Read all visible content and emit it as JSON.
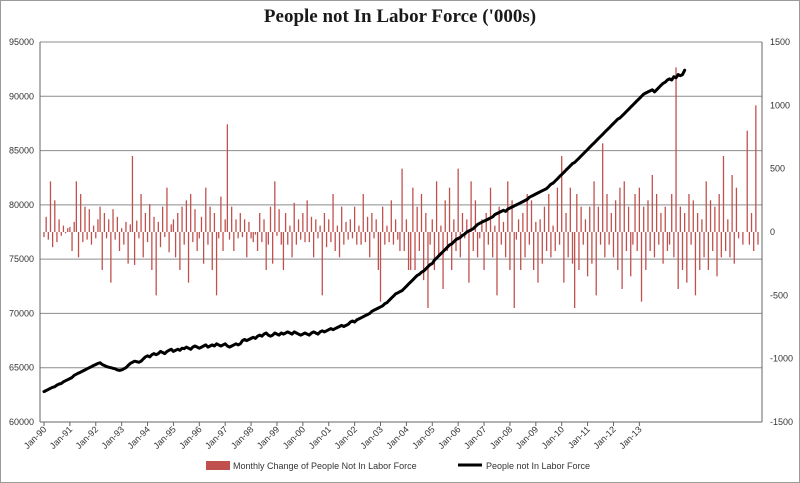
{
  "chart_data": {
    "type": "bar+line",
    "title": "People not In Labor Force ('000s)",
    "grid": true,
    "legend_position": "bottom",
    "left_axis": {
      "ylim": [
        60000,
        95000
      ],
      "ticks": [
        60000,
        65000,
        70000,
        75000,
        80000,
        85000,
        90000,
        95000
      ],
      "tick_labels": [
        "60000",
        "65000",
        "70000",
        "75000",
        "80000",
        "85000",
        "90000",
        "95000"
      ]
    },
    "right_axis": {
      "ylim": [
        -1500,
        1500
      ],
      "ticks": [
        -1500,
        -1000,
        -500,
        0,
        500,
        1000,
        1500
      ],
      "tick_labels": [
        "-1500",
        "-1000",
        "-500",
        "0",
        "500",
        "1000",
        "1500"
      ]
    },
    "x_axis": {
      "start": "1990-01",
      "end": "2013-09",
      "tick_labels": [
        "Jan-90",
        "Jan-91",
        "Jan-92",
        "Jan-93",
        "Jan-94",
        "Jan-95",
        "Jan-96",
        "Jan-97",
        "Jan-98",
        "Jan-99",
        "Jan-00",
        "Jan-01",
        "Jan-02",
        "Jan-03",
        "Jan-04",
        "Jan-05",
        "Jan-06",
        "Jan-07",
        "Jan-08",
        "Jan-09",
        "Jan-10",
        "Jan-11",
        "Jan-12",
        "Jan-13"
      ]
    },
    "series": [
      {
        "name": "Monthly Change of People Not In Labor Force",
        "type": "bar",
        "axis": "right",
        "color": "#c0504d",
        "values": [
          -40,
          120,
          -60,
          400,
          -120,
          250,
          -80,
          100,
          -30,
          50,
          -10,
          30,
          40,
          -150,
          80,
          400,
          -200,
          300,
          -80,
          200,
          -60,
          180,
          -100,
          50,
          -50,
          100,
          200,
          -300,
          150,
          -50,
          100,
          -400,
          180,
          -60,
          120,
          -150,
          30,
          -100,
          80,
          -250,
          60,
          600,
          -260,
          90,
          -50,
          300,
          -200,
          150,
          -80,
          220,
          -300,
          120,
          -500,
          80,
          -120,
          200,
          -40,
          350,
          -160,
          60,
          100,
          -200,
          150,
          -300,
          200,
          -100,
          250,
          -400,
          300,
          -80,
          180,
          -150,
          -50,
          120,
          -250,
          350,
          -100,
          200,
          -300,
          150,
          -500,
          -50,
          280,
          -150,
          100,
          850,
          -60,
          200,
          -150,
          100,
          -50,
          150,
          -40,
          100,
          -200,
          80,
          -50,
          -80,
          -20,
          -150,
          150,
          -80,
          100,
          -300,
          -100,
          200,
          -250,
          400,
          -30,
          180,
          -100,
          -300,
          150,
          -100,
          50,
          -200,
          230,
          -100,
          100,
          -60,
          150,
          -80,
          250,
          -80,
          120,
          -200,
          100,
          -50,
          50,
          -500,
          150,
          -120,
          100,
          -80,
          300,
          -150,
          50,
          -200,
          200,
          -100,
          80,
          -60,
          100,
          -50,
          200,
          -100,
          50,
          -100,
          300,
          -80,
          120,
          -200,
          150,
          -50,
          100,
          -300,
          -550,
          200,
          -100,
          50,
          -80,
          250,
          -100,
          100,
          -60,
          -150,
          500,
          -150,
          100,
          -300,
          -300,
          350,
          -300,
          200,
          -150,
          300,
          -380,
          150,
          -600,
          -100,
          100,
          -300,
          400,
          -200,
          50,
          -450,
          250,
          -150,
          350,
          -300,
          100,
          -150,
          500,
          -200,
          150,
          -50,
          100,
          -400,
          400,
          -150,
          250,
          -200,
          -50,
          100,
          -300,
          150,
          -100,
          350,
          -200,
          50,
          -500,
          200,
          -100,
          80,
          -200,
          400,
          -300,
          250,
          -600,
          -60,
          100,
          -300,
          150,
          -200,
          300,
          -100,
          250,
          -300,
          80,
          -400,
          100,
          -250,
          200,
          -150,
          300,
          -200,
          50,
          -150,
          350,
          -100,
          600,
          -400,
          150,
          -200,
          350,
          -250,
          -600,
          300,
          -300,
          200,
          -100,
          100,
          -350,
          200,
          -250,
          400,
          -500,
          200,
          -100,
          700,
          -200,
          300,
          -100,
          150,
          -200,
          250,
          -300,
          350,
          -450,
          400,
          -150,
          200,
          -350,
          -100,
          300,
          -150,
          350,
          -550,
          200,
          -300,
          250,
          -150,
          450,
          -200,
          300,
          -100,
          150,
          -250,
          200,
          -150,
          -100,
          300,
          -200,
          1300,
          -450,
          200,
          -300,
          150,
          -400,
          300,
          -100,
          250,
          -500,
          150,
          -300,
          100,
          -200,
          400,
          -300,
          250,
          -150,
          200,
          -350,
          300,
          -200,
          600,
          -150,
          100,
          -200,
          450,
          -250,
          350,
          -50,
          0,
          -100,
          0,
          800,
          -100,
          150,
          -150,
          1000,
          -100
        ]
      },
      {
        "name": "People not In Labor Force",
        "type": "line",
        "axis": "left",
        "color": "#000000",
        "values": [
          62800,
          62900,
          63000,
          63100,
          63200,
          63250,
          63400,
          63500,
          63550,
          63700,
          63800,
          63900,
          64000,
          64100,
          64300,
          64400,
          64500,
          64600,
          64700,
          64800,
          64900,
          65000,
          65100,
          65200,
          65300,
          65400,
          65450,
          65300,
          65200,
          65100,
          65050,
          65000,
          64950,
          64900,
          64800,
          64750,
          64800,
          64900,
          65000,
          65200,
          65400,
          65500,
          65600,
          65550,
          65500,
          65600,
          65800,
          66000,
          66100,
          66000,
          66200,
          66300,
          66200,
          66300,
          66500,
          66400,
          66300,
          66500,
          66600,
          66700,
          66500,
          66600,
          66700,
          66600,
          66800,
          66750,
          66900,
          66800,
          66700,
          66900,
          67000,
          66900,
          66800,
          66900,
          67000,
          67100,
          66900,
          67000,
          67100,
          67000,
          67200,
          67100,
          67000,
          67100,
          67200,
          67000,
          66900,
          67000,
          67100,
          67200,
          67100,
          67200,
          67500,
          67600,
          67500,
          67600,
          67700,
          67800,
          67700,
          67900,
          68000,
          67900,
          68100,
          68200,
          68000,
          67900,
          68000,
          68200,
          68100,
          68000,
          68200,
          68100,
          68200,
          68300,
          68200,
          68100,
          68300,
          68200,
          68100,
          68000,
          68100,
          68200,
          68100,
          68000,
          68200,
          68300,
          68200,
          68100,
          68300,
          68400,
          68300,
          68400,
          68500,
          68600,
          68500,
          68600,
          68700,
          68800,
          68900,
          68800,
          68900,
          69000,
          69200,
          69300,
          69200,
          69400,
          69500,
          69600,
          69700,
          69800,
          69900,
          70000,
          70200,
          70300,
          70400,
          70500,
          70600,
          70700,
          70900,
          71000,
          71200,
          71400,
          71600,
          71800,
          71900,
          72000,
          72100,
          72300,
          72500,
          72700,
          72900,
          73100,
          73300,
          73500,
          73600,
          73800,
          73900,
          74100,
          74300,
          74500,
          74600,
          74900,
          75100,
          75300,
          75500,
          75700,
          75900,
          76100,
          76300,
          76400,
          76600,
          76800,
          76900,
          77000,
          77200,
          77300,
          77500,
          77600,
          77700,
          77800,
          78000,
          78200,
          78300,
          78400,
          78500,
          78600,
          78700,
          78800,
          78900,
          79100,
          79200,
          79300,
          79400,
          79500,
          79400,
          79600,
          79700,
          79800,
          79900,
          80000,
          80100,
          80200,
          80300,
          80400,
          80500,
          80700,
          80800,
          80900,
          81000,
          81100,
          81200,
          81300,
          81400,
          81500,
          81700,
          81900,
          82000,
          82200,
          82400,
          82600,
          82800,
          83000,
          83200,
          83400,
          83600,
          83800,
          83900,
          84100,
          84300,
          84500,
          84700,
          84900,
          85100,
          85300,
          85500,
          85700,
          85900,
          86100,
          86300,
          86500,
          86700,
          86900,
          87100,
          87300,
          87500,
          87700,
          87900,
          88000,
          88200,
          88400,
          88600,
          88800,
          89000,
          89200,
          89400,
          89600,
          89800,
          90000,
          90200,
          90300,
          90400,
          90500,
          90600,
          90400,
          90600,
          90800,
          91000,
          91200,
          91300,
          91500,
          91600,
          91500,
          91800,
          91700,
          92000,
          91900,
          92000,
          92400
        ]
      }
    ]
  }
}
